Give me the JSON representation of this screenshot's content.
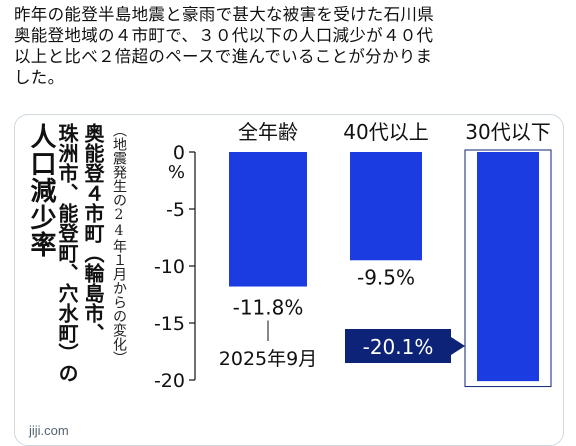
{
  "tweet": {
    "lines": [
      "昨年の能登半島地震と豪雨で甚大な被害を受けた石川県",
      "奥能登地域の４市町で、３０代以下の人口減少が４０代",
      "以上と比べ２倍超のペースで進んでいることが分かりま",
      "した。"
    ]
  },
  "card": {
    "title_lines": [
      "人口減少率",
      "奥能登４市町（輪島市、",
      "珠洲市、能登町、穴水町）の"
    ],
    "subtitle": "（地震発生の24年１月からの変化）",
    "source": "jiji.com"
  },
  "colors": {
    "bar": "#1a3ce0",
    "label_box": "#0d2377",
    "axis": "#111111"
  },
  "chart_data": {
    "type": "bar",
    "categories": [
      "全年齢",
      "40代以上",
      "30代以下"
    ],
    "values": [
      -11.8,
      -9.5,
      -20.1
    ],
    "value_labels": [
      "-11.8%",
      "-9.5%",
      "-20.1%"
    ],
    "highlight_index": 2,
    "yticks": [
      0,
      -5,
      -10,
      -15,
      -20
    ],
    "yunit": "%",
    "ylim": [
      -21,
      0
    ],
    "annotation": "2025年9月"
  }
}
